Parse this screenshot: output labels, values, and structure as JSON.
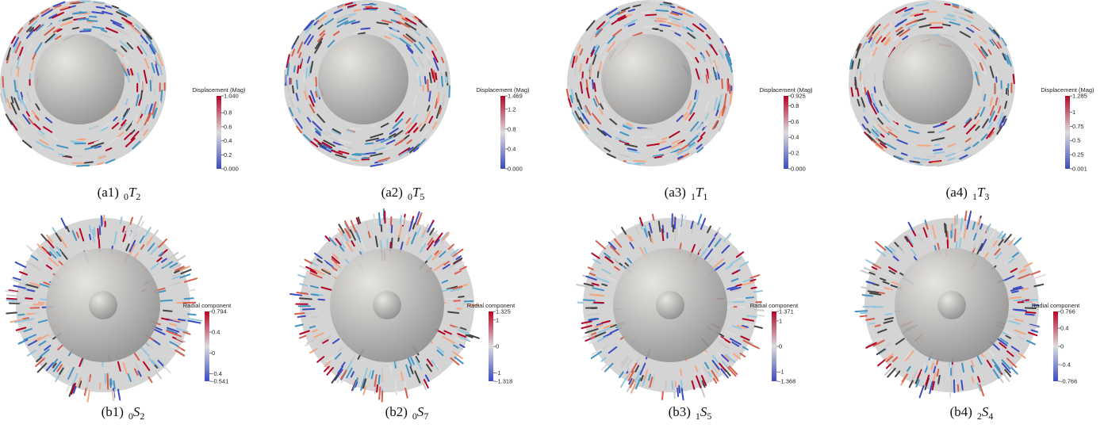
{
  "panels": [
    {
      "tag": "(a1)",
      "pre": "0",
      "letter": "T",
      "sub": "2",
      "colorbar": {
        "title": "Displacement (Mag)",
        "lim": [
          {
            "value": 0,
            "label": "0.000"
          },
          {
            "value": 1.04,
            "label": "1.040"
          }
        ],
        "ticks": [
          0.2,
          0.4,
          0.6,
          0.8
        ]
      }
    },
    {
      "tag": "(a2)",
      "pre": "0",
      "letter": "T",
      "sub": "5",
      "colorbar": {
        "title": "Displacement (Mag)",
        "lim": [
          {
            "value": 0,
            "label": "0.000"
          },
          1.469
        ],
        "ticks": [
          0.4,
          0.8,
          1.2
        ]
      }
    },
    {
      "tag": "(a3)",
      "pre": "1",
      "letter": "T",
      "sub": "1",
      "colorbar": {
        "title": "Displacement (Mag)",
        "lim": [
          {
            "value": 0,
            "label": "0.000"
          },
          0.925
        ],
        "ticks": [
          0.2,
          0.4,
          0.6,
          0.8
        ]
      }
    },
    {
      "tag": "(a4)",
      "pre": "1",
      "letter": "T",
      "sub": "3",
      "colorbar": {
        "title": "Displacement (Mag)",
        "lim": [
          0.001,
          1.285
        ],
        "ticks": [
          0.25,
          0.5,
          0.75,
          1
        ]
      }
    },
    {
      "tag": "(b1)",
      "pre": "0",
      "letter": "S",
      "sub": "2",
      "colorbar": {
        "title": "Radial component",
        "lim": [
          -0.541,
          0.794
        ],
        "ticks": [
          -0.4,
          0,
          0.4
        ]
      }
    },
    {
      "tag": "(b2)",
      "pre": "0",
      "letter": "S",
      "sub": "7",
      "colorbar": {
        "title": "Radial component",
        "lim": [
          -1.318,
          1.325
        ],
        "ticks": [
          -1,
          0,
          1
        ]
      }
    },
    {
      "tag": "(b3)",
      "pre": "1",
      "letter": "S",
      "sub": "5",
      "colorbar": {
        "title": "Radial component",
        "lim": [
          -1.368,
          1.371
        ],
        "ticks": [
          -1,
          0,
          1
        ]
      }
    },
    {
      "tag": "(b4)",
      "pre": "2",
      "letter": "S",
      "sub": "4",
      "colorbar": {
        "title": "Radial component",
        "lim": [
          -0.766,
          0.766
        ],
        "ticks": [
          -0.4,
          0,
          0.4
        ]
      }
    }
  ]
}
